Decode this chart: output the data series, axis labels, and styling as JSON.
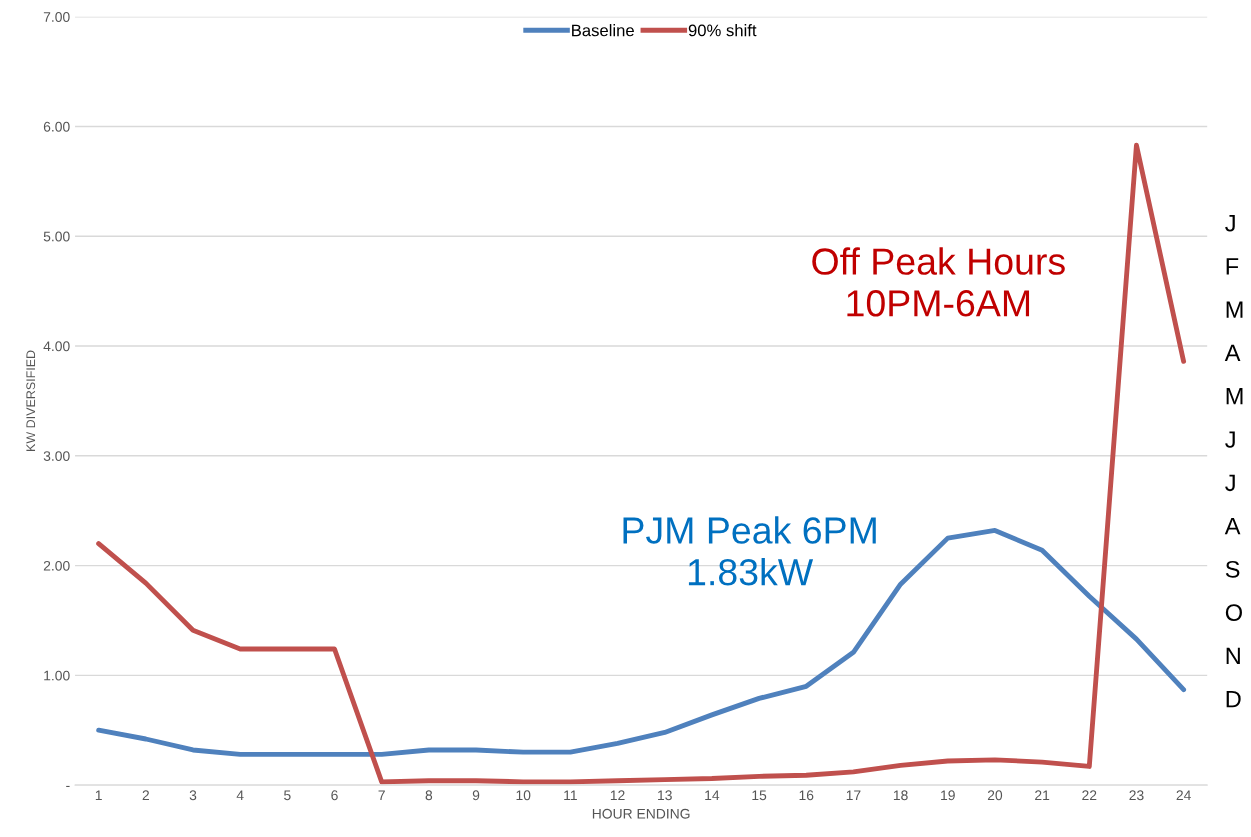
{
  "chart_data": {
    "type": "line",
    "xlabel": "HOUR ENDING",
    "ylabel": "KW DIVERSIFIED",
    "categories": [
      "1",
      "2",
      "3",
      "4",
      "5",
      "6",
      "7",
      "8",
      "9",
      "10",
      "11",
      "12",
      "13",
      "14",
      "15",
      "16",
      "17",
      "18",
      "19",
      "20",
      "21",
      "22",
      "23",
      "24"
    ],
    "series": [
      {
        "name": "Baseline",
        "color": "#4f81bd",
        "values": [
          0.5,
          0.42,
          0.32,
          0.28,
          0.28,
          0.28,
          0.28,
          0.32,
          0.32,
          0.3,
          0.3,
          0.38,
          0.48,
          0.64,
          0.79,
          0.9,
          1.21,
          1.83,
          2.25,
          2.32,
          2.14,
          1.72,
          1.33,
          0.87
        ]
      },
      {
        "name": "90% shift",
        "color": "#c0504d",
        "values": [
          2.2,
          1.84,
          1.41,
          1.24,
          1.24,
          1.24,
          0.03,
          0.04,
          0.04,
          0.03,
          0.03,
          0.04,
          0.05,
          0.06,
          0.08,
          0.09,
          0.12,
          0.18,
          0.22,
          0.23,
          0.21,
          0.17,
          5.83,
          3.86
        ]
      }
    ],
    "ylim": [
      0,
      7
    ],
    "yticks": [
      {
        "value": 0,
        "label": "-"
      },
      {
        "value": 1,
        "label": "1.00"
      },
      {
        "value": 2,
        "label": "2.00"
      },
      {
        "value": 3,
        "label": "3.00"
      },
      {
        "value": 4,
        "label": "4.00"
      },
      {
        "value": 5,
        "label": "5.00"
      },
      {
        "value": 6,
        "label": "6.00"
      },
      {
        "value": 7,
        "label": "7.00"
      }
    ],
    "grid": "y",
    "legend": "top",
    "marker": "none",
    "line_style": "solid",
    "annotations": [
      "Off Peak Hours\n10PM-6AM",
      "PJM Peak 6PM\n1.83kW",
      "J",
      "F",
      "M",
      "A",
      "M",
      "J",
      "J",
      "A",
      "S",
      "O",
      "N",
      "D"
    ]
  }
}
